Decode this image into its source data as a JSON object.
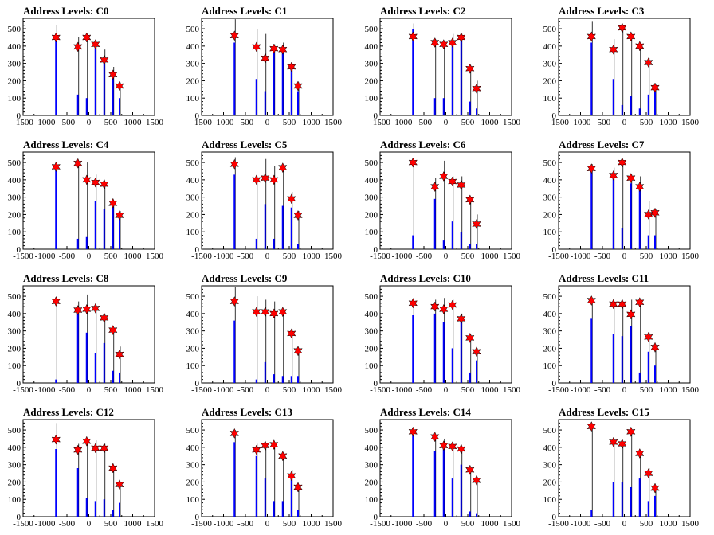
{
  "axis": {
    "xlim": [
      -1500,
      1500
    ],
    "xticks": [
      "-1500",
      "-1000",
      "-500",
      "0",
      "500",
      "1000",
      "1500"
    ],
    "ylim": [
      0,
      560
    ],
    "yticks": [
      "0",
      "100",
      "200",
      "300",
      "400",
      "500"
    ]
  },
  "colors": {
    "histogram": "#0000ff",
    "error": "#000000",
    "marker": "#ff0000"
  },
  "chart_data": [
    {
      "type": "bar",
      "title": "Address Levels: C0",
      "x": [
        -750,
        -250,
        -50,
        150,
        350,
        550,
        700
      ],
      "histogram": [
        460,
        120,
        100,
        410,
        320,
        230,
        100
      ],
      "markers": [
        450,
        395,
        450,
        410,
        320,
        235,
        170
      ],
      "error_tops": [
        520,
        450,
        470,
        420,
        380,
        280,
        190
      ]
    },
    {
      "type": "bar",
      "title": "Address Levels: C1",
      "x": [
        -750,
        -250,
        -50,
        150,
        350,
        550,
        700
      ],
      "histogram": [
        420,
        210,
        140,
        390,
        380,
        280,
        140
      ],
      "markers": [
        460,
        395,
        330,
        385,
        380,
        280,
        170
      ],
      "error_tops": [
        555,
        500,
        470,
        410,
        420,
        300,
        190
      ]
    },
    {
      "type": "bar",
      "title": "Address Levels: C2",
      "x": [
        -750,
        -250,
        -50,
        150,
        350,
        550,
        700
      ],
      "histogram": [
        500,
        100,
        100,
        420,
        440,
        80,
        40
      ],
      "markers": [
        455,
        420,
        410,
        420,
        450,
        270,
        155
      ],
      "error_tops": [
        530,
        440,
        420,
        470,
        470,
        290,
        200
      ]
    },
    {
      "type": "bar",
      "title": "Address Levels: C3",
      "x": [
        -750,
        -250,
        -50,
        150,
        350,
        550,
        700
      ],
      "histogram": [
        420,
        210,
        60,
        110,
        40,
        120,
        150
      ],
      "markers": [
        455,
        380,
        505,
        455,
        400,
        305,
        160
      ],
      "error_tops": [
        540,
        440,
        510,
        460,
        420,
        330,
        180
      ]
    },
    {
      "type": "bar",
      "title": "Address Levels: C4",
      "x": [
        -750,
        -250,
        -50,
        150,
        350,
        550,
        700
      ],
      "histogram": [
        480,
        60,
        70,
        280,
        230,
        250,
        180
      ],
      "markers": [
        475,
        495,
        400,
        385,
        375,
        265,
        195
      ],
      "error_tops": [
        480,
        500,
        500,
        430,
        390,
        280,
        220
      ]
    },
    {
      "type": "bar",
      "title": "Address Levels: C5",
      "x": [
        -750,
        -250,
        -50,
        150,
        350,
        550,
        700
      ],
      "histogram": [
        430,
        60,
        260,
        60,
        250,
        240,
        30
      ],
      "markers": [
        490,
        400,
        410,
        400,
        470,
        290,
        195
      ],
      "error_tops": [
        530,
        420,
        520,
        480,
        480,
        330,
        220
      ]
    },
    {
      "type": "bar",
      "title": "Address Levels: C6",
      "x": [
        -750,
        -250,
        -50,
        150,
        350,
        550,
        700
      ],
      "histogram": [
        80,
        290,
        50,
        160,
        100,
        30,
        30
      ],
      "markers": [
        500,
        360,
        420,
        390,
        370,
        285,
        145
      ],
      "error_tops": [
        510,
        410,
        510,
        420,
        420,
        300,
        200
      ]
    },
    {
      "type": "bar",
      "title": "Address Levels: C7",
      "x": [
        -750,
        -250,
        -50,
        150,
        350,
        550,
        700
      ],
      "histogram": [
        470,
        410,
        120,
        380,
        370,
        80,
        80
      ],
      "markers": [
        465,
        425,
        500,
        410,
        360,
        200,
        210
      ],
      "error_tops": [
        490,
        470,
        510,
        430,
        420,
        280,
        230
      ]
    },
    {
      "type": "bar",
      "title": "Address Levels: C8",
      "x": [
        -750,
        -250,
        -50,
        150,
        350,
        550,
        700
      ],
      "histogram": [
        20,
        400,
        290,
        170,
        230,
        70,
        60
      ],
      "markers": [
        470,
        420,
        425,
        430,
        375,
        305,
        165
      ],
      "error_tops": [
        500,
        470,
        510,
        450,
        400,
        320,
        210
      ]
    },
    {
      "type": "bar",
      "title": "Address Levels: C9",
      "x": [
        -750,
        -250,
        -50,
        150,
        350,
        550,
        700
      ],
      "histogram": [
        360,
        20,
        120,
        50,
        40,
        40,
        40
      ],
      "markers": [
        470,
        410,
        410,
        400,
        410,
        285,
        185
      ],
      "error_tops": [
        555,
        500,
        480,
        470,
        410,
        310,
        200
      ]
    },
    {
      "type": "bar",
      "title": "Address Levels: C10",
      "x": [
        -750,
        -250,
        -50,
        150,
        350,
        550,
        700
      ],
      "histogram": [
        390,
        400,
        350,
        200,
        360,
        60,
        130
      ],
      "markers": [
        460,
        440,
        425,
        450,
        370,
        260,
        180
      ],
      "error_tops": [
        490,
        480,
        490,
        480,
        400,
        280,
        200
      ]
    },
    {
      "type": "bar",
      "title": "Address Levels: C11",
      "x": [
        -750,
        -250,
        -50,
        150,
        350,
        550,
        700
      ],
      "histogram": [
        370,
        280,
        270,
        330,
        60,
        180,
        100
      ],
      "markers": [
        475,
        455,
        455,
        395,
        465,
        265,
        205
      ],
      "error_tops": [
        470,
        470,
        470,
        480,
        470,
        290,
        210
      ]
    },
    {
      "type": "bar",
      "title": "Address Levels: C12",
      "x": [
        -750,
        -250,
        -50,
        150,
        350,
        550,
        700
      ],
      "histogram": [
        390,
        280,
        110,
        90,
        100,
        40,
        80
      ],
      "markers": [
        445,
        385,
        435,
        395,
        395,
        280,
        185
      ],
      "error_tops": [
        540,
        420,
        440,
        440,
        420,
        290,
        200
      ]
    },
    {
      "type": "bar",
      "title": "Address Levels: C13",
      "x": [
        -750,
        -250,
        -50,
        150,
        350,
        550,
        700
      ],
      "histogram": [
        430,
        350,
        220,
        90,
        90,
        230,
        40
      ],
      "markers": [
        480,
        385,
        410,
        415,
        350,
        235,
        170
      ],
      "error_tops": [
        500,
        420,
        420,
        430,
        370,
        270,
        180
      ]
    },
    {
      "type": "bar",
      "title": "Address Levels: C14",
      "x": [
        -750,
        -250,
        -50,
        150,
        350,
        550,
        700
      ],
      "histogram": [
        480,
        380,
        410,
        220,
        300,
        30,
        20
      ],
      "markers": [
        490,
        460,
        410,
        405,
        390,
        270,
        210
      ],
      "error_tops": [
        500,
        470,
        450,
        420,
        400,
        280,
        230
      ]
    },
    {
      "type": "bar",
      "title": "Address Levels: C15",
      "x": [
        -750,
        -250,
        -50,
        150,
        350,
        550,
        700
      ],
      "histogram": [
        40,
        200,
        200,
        170,
        220,
        90,
        120
      ],
      "markers": [
        520,
        430,
        420,
        490,
        365,
        250,
        165
      ],
      "error_tops": [
        520,
        440,
        430,
        500,
        380,
        280,
        180
      ]
    }
  ]
}
